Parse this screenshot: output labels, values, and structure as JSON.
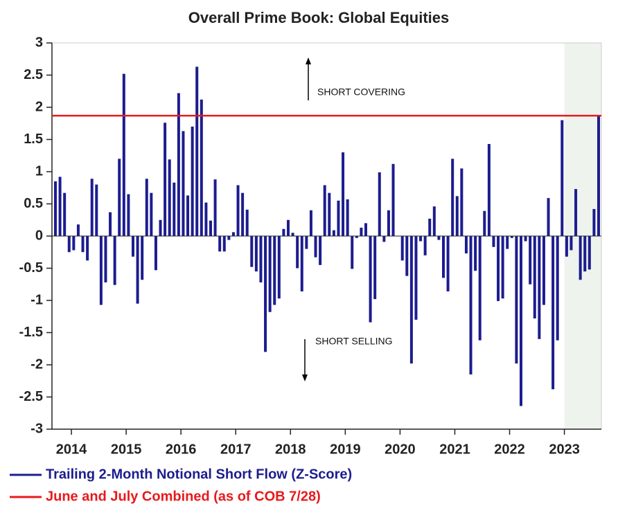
{
  "chart_data": {
    "type": "bar",
    "title": "Overall Prime Book: Global Equities",
    "categories": [
      null,
      null,
      null,
      null,
      "2014",
      null,
      null,
      null,
      null,
      null,
      null,
      null,
      null,
      null,
      null,
      null,
      "2015",
      null,
      null,
      null,
      null,
      null,
      null,
      null,
      null,
      null,
      null,
      null,
      "2016",
      null,
      null,
      null,
      null,
      null,
      null,
      null,
      null,
      null,
      null,
      null,
      "2017",
      null,
      null,
      null,
      null,
      null,
      null,
      null,
      null,
      null,
      null,
      null,
      "2018",
      null,
      null,
      null,
      null,
      null,
      null,
      null,
      null,
      null,
      null,
      null,
      "2019",
      null,
      null,
      null,
      null,
      null,
      null,
      null,
      null,
      null,
      null,
      null,
      "2020",
      null,
      null,
      null,
      null,
      null,
      null,
      null,
      null,
      null,
      null,
      null,
      "2021",
      null,
      null,
      null,
      null,
      null,
      null,
      null,
      null,
      null,
      null,
      null,
      "2022",
      null,
      null,
      null,
      null,
      null,
      null,
      null,
      null,
      null,
      null,
      null,
      "2023",
      null,
      null,
      null,
      null,
      null,
      null,
      null
    ],
    "series": [
      {
        "name": "Trailing 2-Month Notional Short Flow (Z-Score)",
        "color": "#1c1c8f",
        "values": [
          0.85,
          0.92,
          0.67,
          -0.25,
          -0.22,
          0.18,
          -0.25,
          -0.38,
          0.89,
          0.8,
          -1.07,
          -0.72,
          0.37,
          -0.76,
          1.2,
          2.52,
          0.65,
          -0.32,
          -1.05,
          -0.68,
          0.89,
          0.67,
          -0.53,
          0.25,
          1.76,
          1.19,
          0.83,
          2.22,
          1.63,
          0.63,
          1.7,
          2.63,
          2.12,
          0.52,
          0.24,
          0.88,
          -0.24,
          -0.24,
          -0.06,
          0.06,
          0.79,
          0.67,
          0.41,
          -0.48,
          -0.55,
          -0.72,
          -1.8,
          -1.18,
          -1.07,
          -0.97,
          0.11,
          0.25,
          0.05,
          -0.5,
          -0.86,
          -0.2,
          0.4,
          -0.33,
          -0.45,
          0.79,
          0.67,
          0.09,
          0.55,
          1.3,
          0.57,
          -0.51,
          -0.03,
          0.13,
          0.2,
          -1.34,
          -0.98,
          0.99,
          -0.09,
          0.4,
          1.12,
          0.0,
          -0.38,
          -0.62,
          -1.98,
          -1.3,
          -0.08,
          -0.3,
          0.27,
          0.46,
          -0.06,
          -0.65,
          -0.86,
          1.2,
          0.62,
          1.05,
          -0.27,
          -2.15,
          -0.54,
          -1.62,
          0.39,
          1.43,
          -0.17,
          -1.01,
          -0.97,
          -0.2,
          -0.03,
          -1.98,
          -2.64,
          -0.08,
          -0.75,
          -1.28,
          -1.6,
          -1.07,
          0.59,
          -2.38,
          -1.62,
          1.8,
          -0.32,
          -0.22,
          0.73,
          -0.68,
          -0.55,
          -0.52,
          0.42,
          1.87
        ]
      }
    ],
    "reference_line": {
      "name": "June and July Combined (as of COB 7/28)",
      "value": 1.87,
      "color": "#e8191c"
    },
    "annotations": [
      "SHORT COVERING",
      "SHORT SELLING"
    ],
    "ylim": [
      -3,
      3
    ],
    "yticks": [
      3,
      2.5,
      2,
      1.5,
      1,
      0.5,
      0,
      -0.5,
      -1,
      -1.5,
      -2,
      -2.5,
      -3
    ]
  }
}
